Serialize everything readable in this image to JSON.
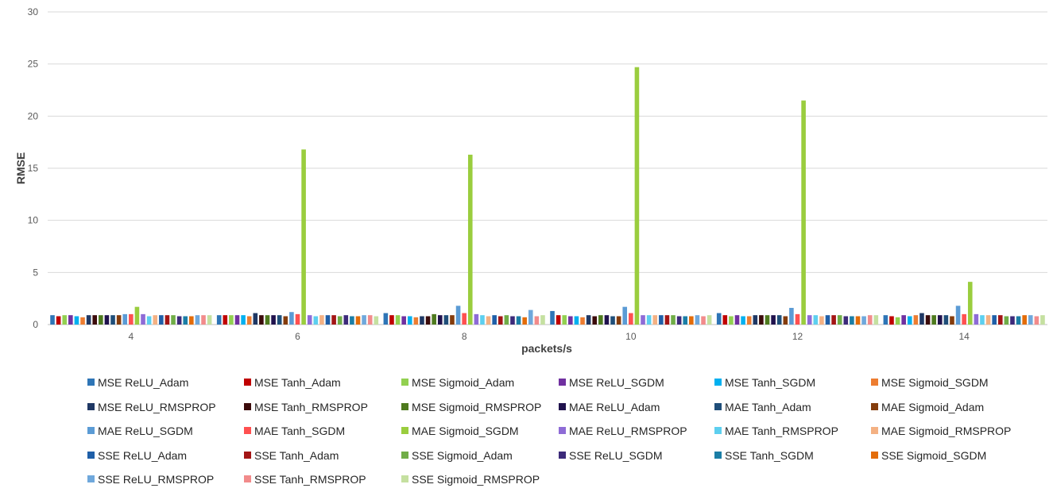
{
  "chart_data": {
    "type": "bar",
    "title": "",
    "xlabel": "packets/s",
    "ylabel": "RMSE",
    "ylim": [
      0,
      30
    ],
    "yticks": [
      0,
      5,
      10,
      15,
      20,
      25,
      30
    ],
    "grid": true,
    "legend_position": "bottom",
    "categories": [
      "4",
      "6",
      "8",
      "10",
      "12",
      "14"
    ],
    "series": [
      {
        "name": "MSE ReLU_Adam",
        "color": "#2e75b6",
        "values": [
          0.9,
          0.9,
          1.1,
          1.3,
          1.1,
          0.9
        ]
      },
      {
        "name": "MSE Tanh_Adam",
        "color": "#c00000",
        "values": [
          0.8,
          0.9,
          0.9,
          0.9,
          0.9,
          0.8
        ]
      },
      {
        "name": "MSE Sigmoid_Adam",
        "color": "#92d050",
        "values": [
          0.9,
          0.9,
          0.9,
          0.9,
          0.8,
          0.7
        ]
      },
      {
        "name": "MSE ReLU_SGDM",
        "color": "#7030a0",
        "values": [
          0.9,
          0.9,
          0.8,
          0.8,
          0.9,
          0.9
        ]
      },
      {
        "name": "MSE Tanh_SGDM",
        "color": "#00b0f0",
        "values": [
          0.8,
          0.9,
          0.8,
          0.8,
          0.8,
          0.8
        ]
      },
      {
        "name": "MSE Sigmoid_SGDM",
        "color": "#ed7d31",
        "values": [
          0.7,
          0.8,
          0.7,
          0.7,
          0.8,
          0.9
        ]
      },
      {
        "name": "MSE ReLU_RMSPROP",
        "color": "#1f3864",
        "values": [
          0.9,
          1.1,
          0.8,
          0.9,
          0.9,
          1.1
        ]
      },
      {
        "name": "MSE Tanh_RMSPROP",
        "color": "#3b0b0b",
        "values": [
          0.9,
          0.9,
          0.8,
          0.8,
          0.9,
          0.9
        ]
      },
      {
        "name": "MSE Sigmoid_RMSPROP",
        "color": "#4e7a1e",
        "values": [
          0.9,
          0.9,
          1.0,
          0.9,
          0.9,
          0.9
        ]
      },
      {
        "name": "MAE ReLU_Adam",
        "color": "#20124d",
        "values": [
          0.9,
          0.9,
          0.9,
          0.9,
          0.9,
          0.9
        ]
      },
      {
        "name": "MAE Tanh_Adam",
        "color": "#1f4e79",
        "values": [
          0.9,
          0.9,
          0.9,
          0.8,
          0.9,
          0.9
        ]
      },
      {
        "name": "MAE Sigmoid_Adam",
        "color": "#843c0c",
        "values": [
          0.9,
          0.8,
          0.9,
          0.8,
          0.8,
          0.8
        ]
      },
      {
        "name": "MAE ReLU_SGDM",
        "color": "#5b9bd5",
        "values": [
          1.0,
          1.2,
          1.8,
          1.7,
          1.6,
          1.8
        ]
      },
      {
        "name": "MAE Tanh_SGDM",
        "color": "#ff5050",
        "values": [
          1.0,
          1.0,
          1.1,
          1.1,
          1.0,
          1.0
        ]
      },
      {
        "name": "MAE Sigmoid_SGDM",
        "color": "#9acd3e",
        "values": [
          1.7,
          16.8,
          16.3,
          24.7,
          21.5,
          4.1
        ]
      },
      {
        "name": "MAE ReLU_RMSPROP",
        "color": "#8e6bd6",
        "values": [
          1.0,
          0.9,
          1.0,
          0.9,
          0.9,
          1.0
        ]
      },
      {
        "name": "MAE Tanh_RMSPROP",
        "color": "#5dcfef",
        "values": [
          0.8,
          0.8,
          0.9,
          0.9,
          0.9,
          0.9
        ]
      },
      {
        "name": "MAE Sigmoid_RMSPROP",
        "color": "#f4b183",
        "values": [
          0.9,
          0.9,
          0.8,
          0.9,
          0.8,
          0.9
        ]
      },
      {
        "name": "SSE ReLU_Adam",
        "color": "#1f5fa8",
        "values": [
          0.9,
          0.9,
          0.9,
          0.9,
          0.9,
          0.9
        ]
      },
      {
        "name": "SSE Tanh_Adam",
        "color": "#a31515",
        "values": [
          0.9,
          0.9,
          0.8,
          0.9,
          0.9,
          0.9
        ]
      },
      {
        "name": "SSE Sigmoid_Adam",
        "color": "#70ad47",
        "values": [
          0.9,
          0.8,
          0.9,
          0.9,
          0.9,
          0.8
        ]
      },
      {
        "name": "SSE ReLU_SGDM",
        "color": "#3c2a7a",
        "values": [
          0.8,
          0.9,
          0.8,
          0.8,
          0.8,
          0.8
        ]
      },
      {
        "name": "SSE Tanh_SGDM",
        "color": "#1b7ea6",
        "values": [
          0.8,
          0.8,
          0.8,
          0.8,
          0.8,
          0.8
        ]
      },
      {
        "name": "SSE Sigmoid_SGDM",
        "color": "#e36c09",
        "values": [
          0.8,
          0.8,
          0.7,
          0.8,
          0.8,
          0.9
        ]
      },
      {
        "name": "SSE ReLU_RMSPROP",
        "color": "#6fa8dc",
        "values": [
          0.9,
          0.9,
          1.4,
          0.9,
          0.8,
          0.9
        ]
      },
      {
        "name": "SSE Tanh_RMSPROP",
        "color": "#f28b8b",
        "values": [
          0.9,
          0.9,
          0.8,
          0.8,
          0.9,
          0.8
        ]
      },
      {
        "name": "SSE Sigmoid_RMSPROP",
        "color": "#c5e0a0",
        "values": [
          0.9,
          0.8,
          0.9,
          0.9,
          0.9,
          0.9
        ]
      }
    ]
  }
}
